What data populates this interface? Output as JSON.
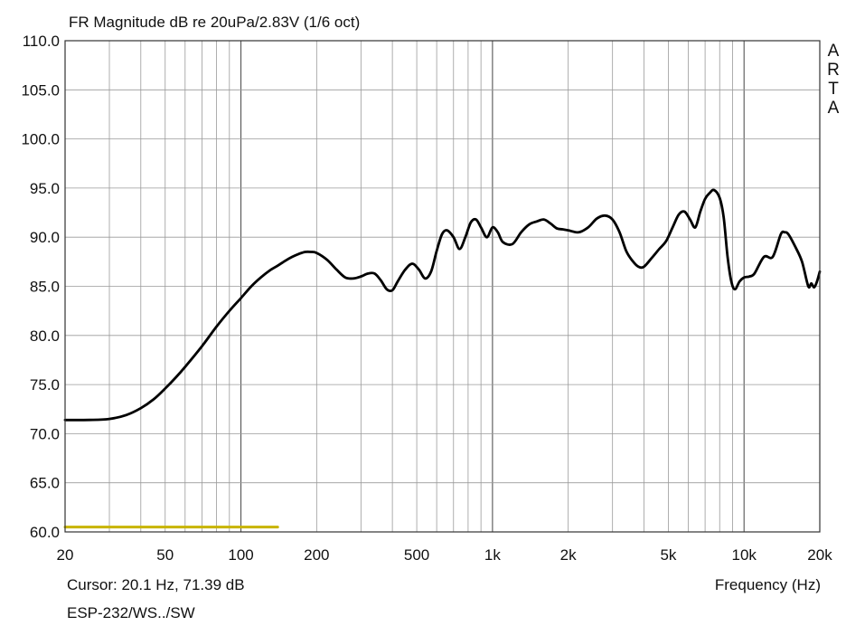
{
  "chart_data": {
    "type": "line",
    "title": "FR Magnitude dB re 20uPa/2.83V (1/6 oct)",
    "xlabel": "Frequency (Hz)",
    "ylabel": "",
    "x_scale": "log",
    "xlim": [
      20,
      20000
    ],
    "ylim": [
      60,
      110
    ],
    "grid": true,
    "x_ticks": [
      20,
      50,
      100,
      200,
      500,
      1000,
      2000,
      5000,
      10000,
      20000
    ],
    "x_tick_labels": [
      "20",
      "50",
      "100",
      "200",
      "500",
      "1k",
      "2k",
      "5k",
      "10k",
      "20k"
    ],
    "y_ticks": [
      60,
      65,
      70,
      75,
      80,
      85,
      90,
      95,
      100,
      105,
      110
    ],
    "y_tick_labels": [
      "60.0",
      "65.0",
      "70.0",
      "75.0",
      "80.0",
      "85.0",
      "90.0",
      "95.0",
      "100.0",
      "105.0",
      "110.0"
    ],
    "series": [
      {
        "color": "#000000",
        "x": [
          20,
          25,
          30,
          35,
          40,
          45,
          50,
          55,
          60,
          70,
          80,
          90,
          100,
          110,
          120,
          130,
          140,
          150,
          160,
          170,
          180,
          190,
          200,
          220,
          240,
          260,
          280,
          300,
          320,
          340,
          360,
          380,
          400,
          420,
          450,
          480,
          510,
          540,
          570,
          600,
          630,
          660,
          700,
          740,
          780,
          820,
          860,
          900,
          950,
          1000,
          1050,
          1100,
          1200,
          1300,
          1400,
          1500,
          1600,
          1700,
          1800,
          1900,
          2000,
          2200,
          2400,
          2600,
          2800,
          3000,
          3200,
          3400,
          3600,
          3800,
          4000,
          4300,
          4600,
          4900,
          5200,
          5500,
          5800,
          6100,
          6400,
          6700,
          7000,
          7300,
          7600,
          8000,
          8300,
          8600,
          8900,
          9200,
          9600,
          10000,
          10500,
          11000,
          12000,
          13000,
          14000,
          14500,
          15000,
          16000,
          17000,
          18000,
          18500,
          19000,
          19500,
          20000
        ],
        "values": [
          71.39,
          71.4,
          71.5,
          71.9,
          72.6,
          73.5,
          74.6,
          75.7,
          76.8,
          78.9,
          80.9,
          82.5,
          83.8,
          85.0,
          85.9,
          86.6,
          87.1,
          87.6,
          88.0,
          88.3,
          88.5,
          88.5,
          88.4,
          87.7,
          86.7,
          85.9,
          85.8,
          86.0,
          86.3,
          86.3,
          85.6,
          84.7,
          84.6,
          85.5,
          86.7,
          87.3,
          86.7,
          85.8,
          86.5,
          88.6,
          90.3,
          90.7,
          90.0,
          88.8,
          90.0,
          91.5,
          91.8,
          91.0,
          90.0,
          91.0,
          90.5,
          89.5,
          89.3,
          90.5,
          91.3,
          91.6,
          91.8,
          91.4,
          90.9,
          90.8,
          90.7,
          90.5,
          91.0,
          91.9,
          92.2,
          91.8,
          90.5,
          88.6,
          87.6,
          87.0,
          87.0,
          87.9,
          88.8,
          89.6,
          91.0,
          92.3,
          92.6,
          91.8,
          91.0,
          92.6,
          93.9,
          94.5,
          94.8,
          94.0,
          92.0,
          88.0,
          85.5,
          84.7,
          85.5,
          85.9,
          86.0,
          86.3,
          88.0,
          88.0,
          90.3,
          90.5,
          90.3,
          89.0,
          87.5,
          85.0,
          85.3,
          84.9,
          85.5,
          86.5
        ]
      },
      {
        "color": "#c8b400",
        "x": [
          20,
          140
        ],
        "values": [
          60.5,
          60.5
        ]
      }
    ],
    "cursor_readout": "Cursor: 20.1 Hz, 71.39 dB",
    "source_label": "ESP-232/WS../SW",
    "brand_letters": [
      "A",
      "R",
      "T",
      "A"
    ]
  }
}
